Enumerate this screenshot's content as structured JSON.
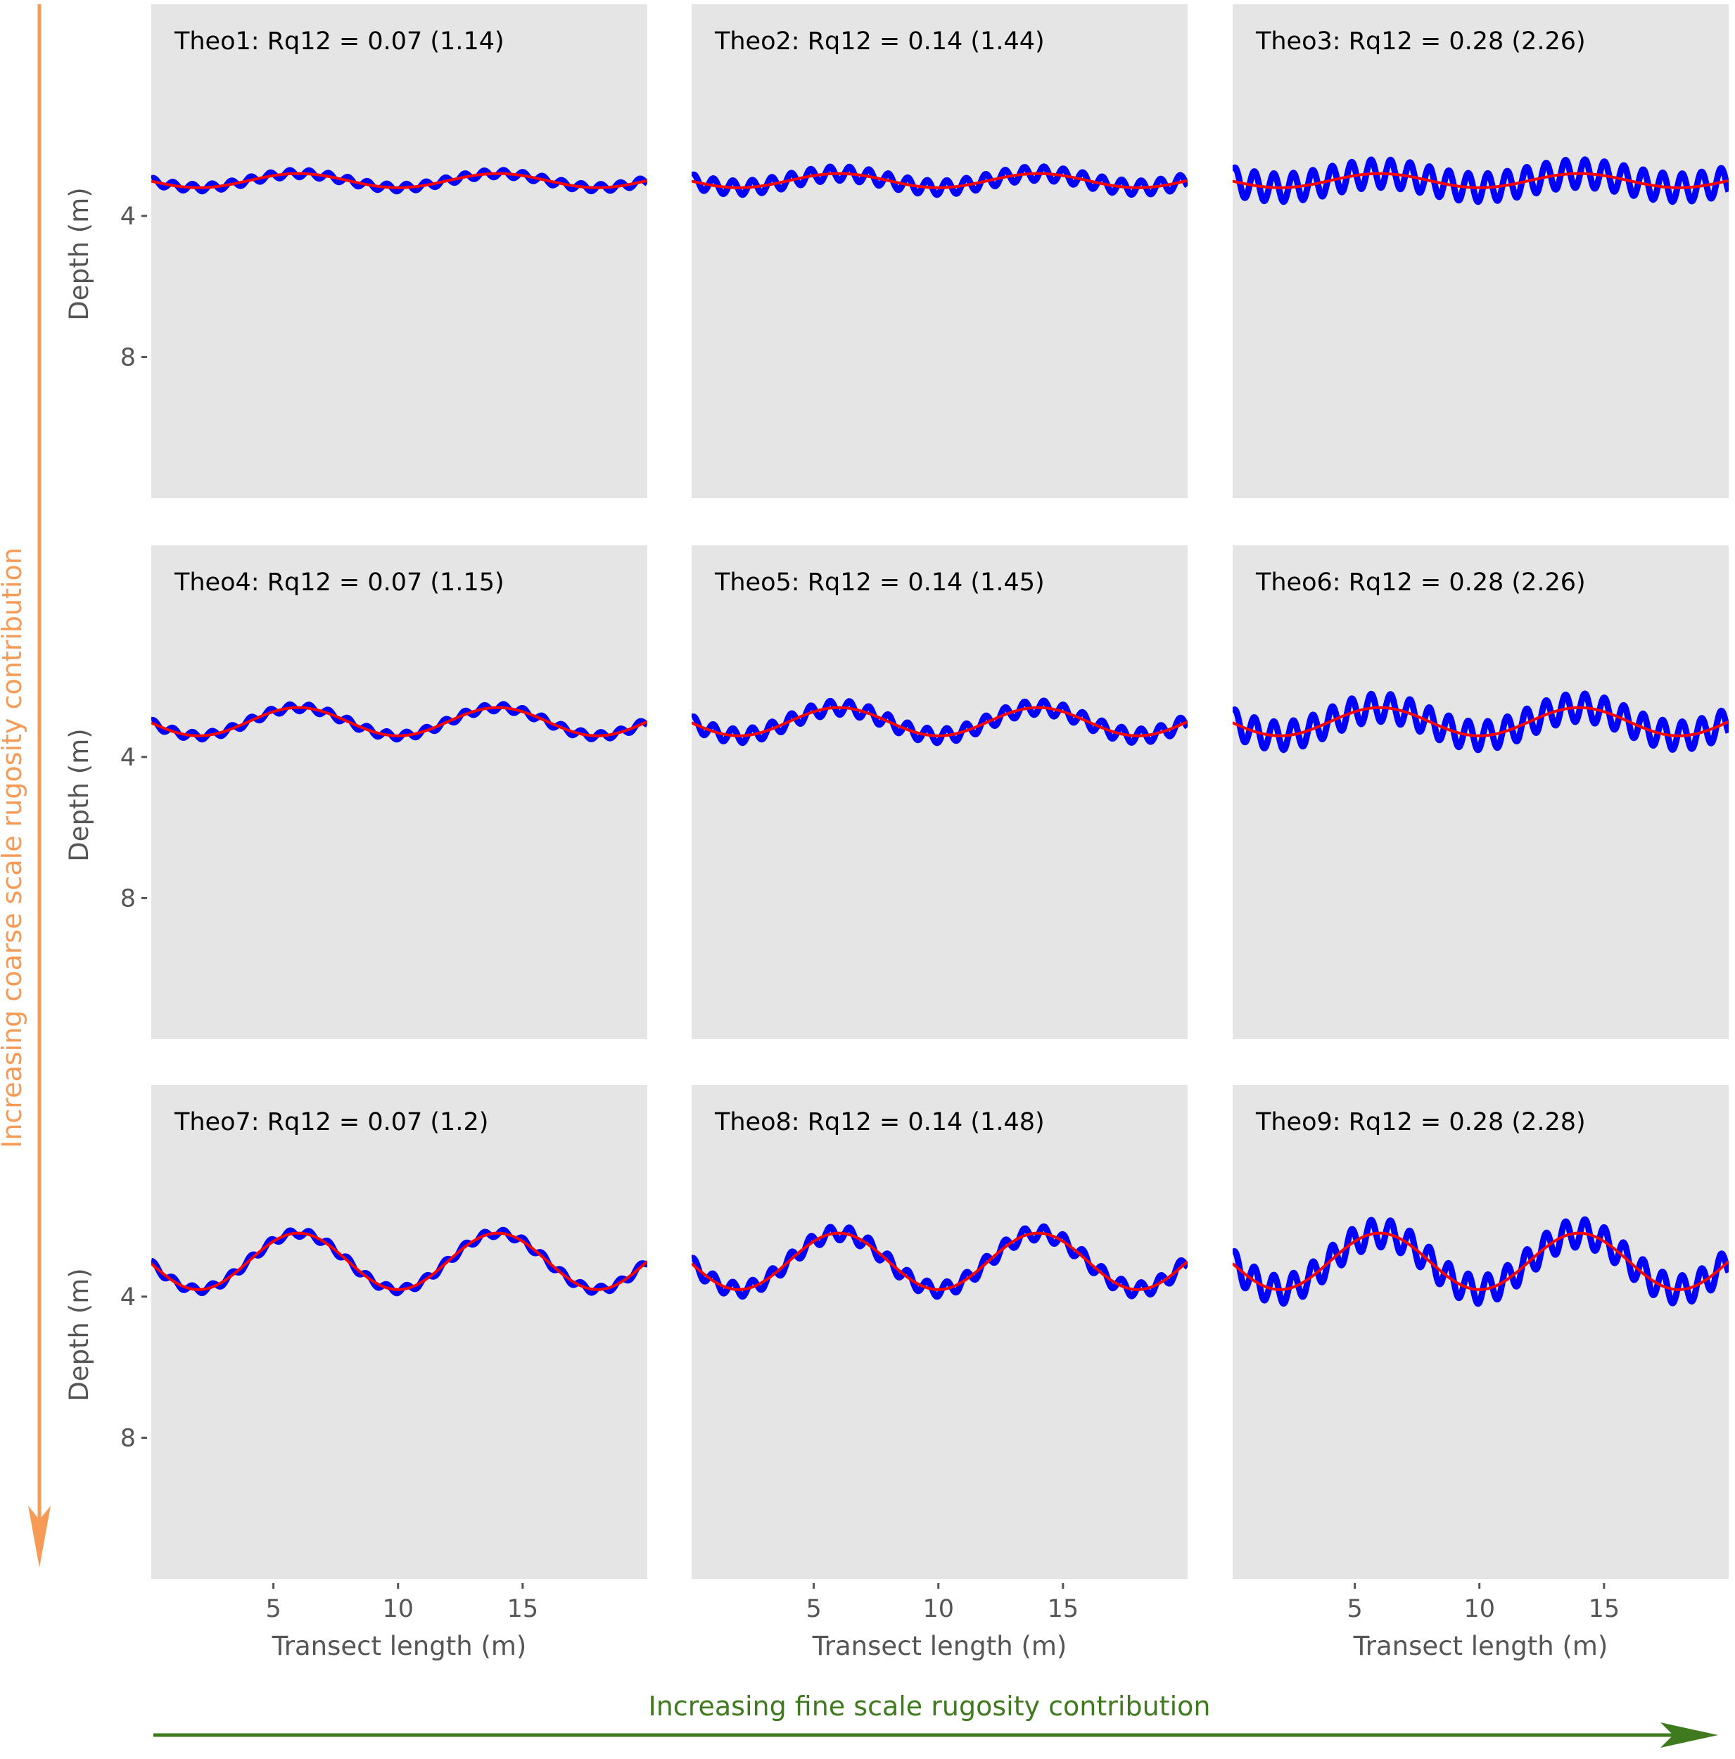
{
  "colors": {
    "panel_bg": "#e5e5e5",
    "profile": "#0000ff",
    "smoothed": "#ff0000",
    "coarse_arrow": "#f79a55",
    "fine_arrow": "#3f7a1e"
  },
  "annotations": {
    "coarse_label": "Increasing coarse scale rugosity contribution",
    "fine_label": "Increasing fine scale rugosity contribution"
  },
  "chart_data": [
    {
      "type": "line",
      "title": "Theo1: Rq12 = 0.07 (1.14)",
      "xlabel": "",
      "ylabel": "Depth (m)",
      "xticks": [],
      "yticks": [
        4,
        8
      ],
      "xlim": [
        0.1,
        20
      ],
      "ylim": [
        12,
        -2
      ],
      "mean_depth": 3,
      "coarse_amplitude": 0.2,
      "coarse_period": 8,
      "fine_amplitude": 0.1,
      "fine_period": 0.78
    },
    {
      "type": "line",
      "title": "Theo2: Rq12 = 0.14 (1.44)",
      "xlabel": "",
      "ylabel": "",
      "xticks": [],
      "yticks": [],
      "xlim": [
        0.1,
        20
      ],
      "ylim": [
        12,
        -2
      ],
      "mean_depth": 3,
      "coarse_amplitude": 0.2,
      "coarse_period": 8,
      "fine_amplitude": 0.2,
      "fine_period": 0.78
    },
    {
      "type": "line",
      "title": "Theo3: Rq12 = 0.28 (2.26)",
      "xlabel": "",
      "ylabel": "",
      "xticks": [],
      "yticks": [],
      "xlim": [
        0.1,
        20
      ],
      "ylim": [
        12,
        -2
      ],
      "mean_depth": 3,
      "coarse_amplitude": 0.2,
      "coarse_period": 8,
      "fine_amplitude": 0.4,
      "fine_period": 0.78
    },
    {
      "type": "line",
      "title": "Theo4: Rq12 = 0.07 (1.15)",
      "xlabel": "",
      "ylabel": "Depth (m)",
      "xticks": [],
      "yticks": [
        4,
        8
      ],
      "xlim": [
        0.1,
        20
      ],
      "ylim": [
        12,
        -2
      ],
      "mean_depth": 3,
      "coarse_amplitude": 0.4,
      "coarse_period": 8,
      "fine_amplitude": 0.1,
      "fine_period": 0.78
    },
    {
      "type": "line",
      "title": "Theo5: Rq12 = 0.14 (1.45)",
      "xlabel": "",
      "ylabel": "",
      "xticks": [],
      "yticks": [],
      "xlim": [
        0.1,
        20
      ],
      "ylim": [
        12,
        -2
      ],
      "mean_depth": 3,
      "coarse_amplitude": 0.4,
      "coarse_period": 8,
      "fine_amplitude": 0.2,
      "fine_period": 0.78
    },
    {
      "type": "line",
      "title": "Theo6: Rq12 = 0.28 (2.26)",
      "xlabel": "",
      "ylabel": "",
      "xticks": [],
      "yticks": [],
      "xlim": [
        0.1,
        20
      ],
      "ylim": [
        12,
        -2
      ],
      "mean_depth": 3,
      "coarse_amplitude": 0.4,
      "coarse_period": 8,
      "fine_amplitude": 0.4,
      "fine_period": 0.78
    },
    {
      "type": "line",
      "title": "Theo7: Rq12 = 0.07 (1.2)",
      "xlabel": "Transect length (m)",
      "ylabel": "Depth (m)",
      "xticks": [
        5,
        10,
        15
      ],
      "yticks": [
        4,
        8
      ],
      "xlim": [
        0.1,
        20
      ],
      "ylim": [
        12,
        -2
      ],
      "mean_depth": 3,
      "coarse_amplitude": 0.8,
      "coarse_period": 8,
      "fine_amplitude": 0.1,
      "fine_period": 0.78
    },
    {
      "type": "line",
      "title": "Theo8: Rq12 = 0.14 (1.48)",
      "xlabel": "Transect length (m)",
      "ylabel": "",
      "xticks": [
        5,
        10,
        15
      ],
      "yticks": [],
      "xlim": [
        0.1,
        20
      ],
      "ylim": [
        12,
        -2
      ],
      "mean_depth": 3,
      "coarse_amplitude": 0.8,
      "coarse_period": 8,
      "fine_amplitude": 0.2,
      "fine_period": 0.78
    },
    {
      "type": "line",
      "title": "Theo9: Rq12 = 0.28 (2.28)",
      "xlabel": "Transect length (m)",
      "ylabel": "",
      "xticks": [
        5,
        10,
        15
      ],
      "yticks": [],
      "xlim": [
        0.1,
        20
      ],
      "ylim": [
        12,
        -2
      ],
      "mean_depth": 3,
      "coarse_amplitude": 0.8,
      "coarse_period": 8,
      "fine_amplitude": 0.4,
      "fine_period": 0.78
    }
  ]
}
